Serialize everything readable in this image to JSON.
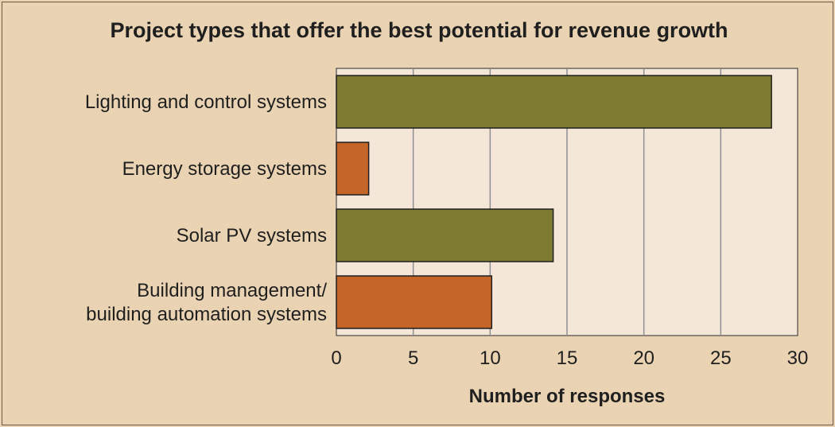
{
  "chart_data": {
    "type": "bar",
    "orientation": "horizontal",
    "title": "Project types that offer the best potential for revenue growth",
    "xlabel": "Number of responses",
    "ylabel": "",
    "categories": [
      [
        "Lighting and control systems"
      ],
      [
        "Energy storage systems"
      ],
      [
        "Solar PV systems"
      ],
      [
        "Building management/",
        "building automation systems"
      ]
    ],
    "values": [
      28.3,
      2.1,
      14.1,
      10.1
    ],
    "bar_colors": [
      "#7d7a32",
      "#c4662a",
      "#7d7a32",
      "#c4662a"
    ],
    "xlim": [
      0,
      30
    ],
    "xticks": [
      0,
      5,
      10,
      15,
      20,
      25,
      30
    ],
    "grid": true
  },
  "colors": {
    "background": "#ead3b2",
    "plot_background": "#f4e7d8",
    "gridline": "#8e8e96",
    "bar_olive": "#7d7a32",
    "bar_orange": "#c4662a"
  }
}
